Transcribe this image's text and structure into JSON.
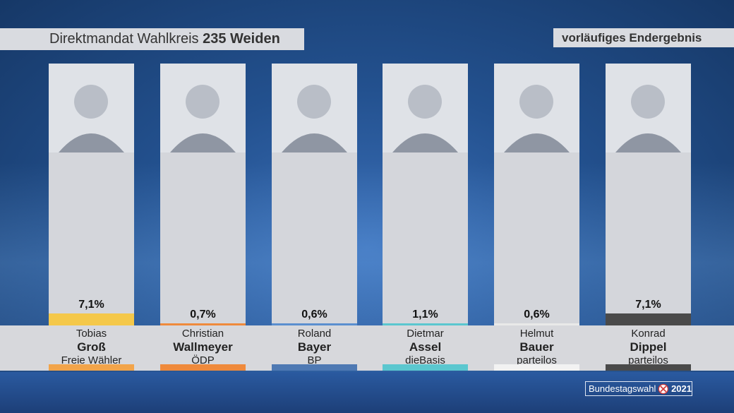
{
  "header": {
    "title_prefix": "Direktmandat Wahlkreis",
    "title_bold": "235 Weiden",
    "status": "vorläufiges Endergebnis"
  },
  "logo": {
    "text": "Bundestagswahl",
    "year": "2021"
  },
  "candidates": [
    {
      "first": "Tobias",
      "last": "Groß",
      "party": "Freie Wähler",
      "value_label": "7,1%",
      "color": "#f4c84a",
      "stripe": "#f2a44a"
    },
    {
      "first": "Christian",
      "last": "Wallmeyer",
      "party": "ÖDP",
      "value_label": "0,7%",
      "color": "#ef8a3c",
      "stripe": "#ef8a3c"
    },
    {
      "first": "Roland",
      "last": "Bayer",
      "party": "BP",
      "value_label": "0,6%",
      "color": "#5b8fcf",
      "stripe": "#4e79b3"
    },
    {
      "first": "Dietmar",
      "last": "Assel",
      "party": "dieBasis",
      "value_label": "1,1%",
      "color": "#5bc7cf",
      "stripe": "#5bc7cf"
    },
    {
      "first": "Helmut",
      "last": "Bauer",
      "party": "parteilos",
      "value_label": "0,6%",
      "color": "#e9e9e9",
      "stripe": "#f2f2f2"
    },
    {
      "first": "Konrad",
      "last": "Dippel",
      "party": "parteilos",
      "value_label": "7,1%",
      "color": "#4a4a4a",
      "stripe": "#4a4a4a"
    }
  ],
  "chart_data": {
    "type": "bar",
    "categories": [
      "Tobias Groß",
      "Christian Wallmeyer",
      "Roland Bayer",
      "Dietmar Assel",
      "Helmut Bauer",
      "Konrad Dippel"
    ],
    "values": [
      7.1,
      0.7,
      0.6,
      1.1,
      0.6,
      7.1
    ],
    "title": "Direktmandat Wahlkreis 235 Weiden",
    "subtitle": "vorläufiges Endergebnis",
    "ylim": [
      0,
      100
    ],
    "grid": false
  }
}
